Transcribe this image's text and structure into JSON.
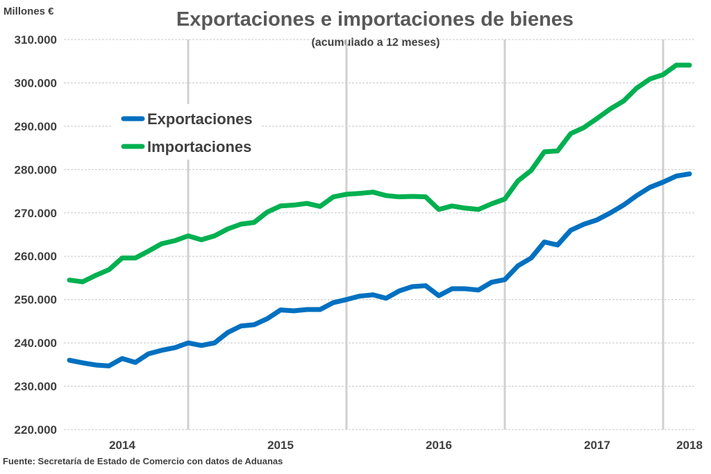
{
  "chart_data": {
    "type": "line",
    "title": "Exportaciones e importaciones de bienes",
    "subtitle": "(acumulado  a 12 meses)",
    "ylabel": "Millones €",
    "xlabel": "",
    "source": "Fuente: Secretaría de Estado de Comercio con datos de Aduanas",
    "ylim": [
      220000,
      310000
    ],
    "yticks": [
      220000,
      230000,
      240000,
      250000,
      260000,
      270000,
      280000,
      290000,
      300000,
      310000
    ],
    "ytick_labels": [
      "220.000",
      "230.000",
      "240.000",
      "250.000",
      "260.000",
      "270.000",
      "280.000",
      "290.000",
      "300.000",
      "310.000"
    ],
    "grid": "horizontal dashed",
    "n_points": 48,
    "year_separators_at_index": [
      9,
      21,
      33,
      45
    ],
    "xtick_labels": [
      {
        "label": "2014",
        "index": 4
      },
      {
        "label": "2015",
        "index": 16
      },
      {
        "label": "2016",
        "index": 28
      },
      {
        "label": "2017",
        "index": 40
      },
      {
        "label": "2018",
        "index": 47
      }
    ],
    "legend_position": "upper-left",
    "series": [
      {
        "name": "Exportaciones",
        "color": "#0070C0",
        "values": [
          236000,
          235400,
          234900,
          234700,
          236400,
          235500,
          237500,
          238300,
          238900,
          240000,
          239400,
          240000,
          242400,
          243900,
          244200,
          245600,
          247600,
          247400,
          247700,
          247700,
          249300,
          250000,
          250800,
          251100,
          250300,
          252000,
          253000,
          253200,
          250900,
          252500,
          252500,
          252200,
          254000,
          254600,
          257800,
          259600,
          263300,
          262600,
          266000,
          267400,
          268400,
          270000,
          271800,
          274000,
          275900,
          277100,
          278500,
          279000
        ]
      },
      {
        "name": "Importaciones",
        "color": "#00B050",
        "values": [
          254500,
          254100,
          255600,
          256900,
          259600,
          259600,
          261200,
          262900,
          263600,
          264700,
          263800,
          264700,
          266300,
          267400,
          267800,
          270200,
          271600,
          271800,
          272200,
          271500,
          273700,
          274300,
          274500,
          274800,
          274000,
          273700,
          273800,
          273700,
          270800,
          271600,
          271100,
          270800,
          272100,
          273200,
          277400,
          279800,
          284100,
          284300,
          288300,
          289700,
          291800,
          294000,
          295800,
          298800,
          300900,
          301900,
          304100,
          304100
        ]
      }
    ]
  }
}
